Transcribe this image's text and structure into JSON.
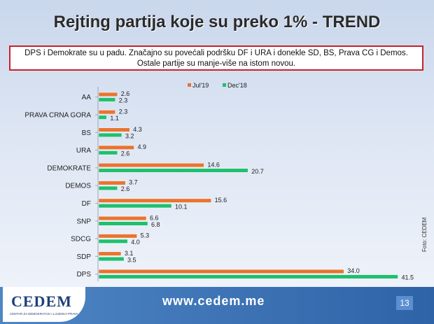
{
  "title": "Rejting partija koje su preko 1% - TREND",
  "note": {
    "line1": "DPS i Demokrate su u padu. Značajno su povećali podršku DF i URA i donekle SD, BS, Prava CG i Demos.",
    "line2": "Ostale partije su manje-više na istom novou."
  },
  "footer": {
    "logo": "CEDEM",
    "logo_subtitle": "CENTAR ZA DEMOKRATIJU I LJUDSKA PRAVA",
    "url": "www.cedem.me",
    "page_number": "13"
  },
  "photo_credit": "Foto: CEDEM",
  "colors": {
    "jul19": "#e8742f",
    "dec18": "#1fbf6e"
  },
  "chart_data": {
    "type": "bar",
    "orientation": "horizontal",
    "categories": [
      "AA",
      "PRAVA CRNA GORA",
      "BS",
      "URA",
      "DEMOKRATE",
      "DEMOS",
      "DF",
      "SNP",
      "SDCG",
      "SDP",
      "DPS"
    ],
    "series": [
      {
        "name": "Jul'19",
        "values": [
          2.6,
          2.3,
          4.3,
          4.9,
          14.6,
          3.7,
          15.6,
          6.6,
          5.3,
          3.1,
          34.0
        ]
      },
      {
        "name": "Dec'18",
        "values": [
          2.3,
          1.1,
          3.2,
          2.6,
          20.7,
          2.6,
          10.1,
          6.8,
          4.0,
          3.5,
          41.5
        ]
      }
    ],
    "legend_position": "top",
    "data_labels": true,
    "grid": false
  }
}
